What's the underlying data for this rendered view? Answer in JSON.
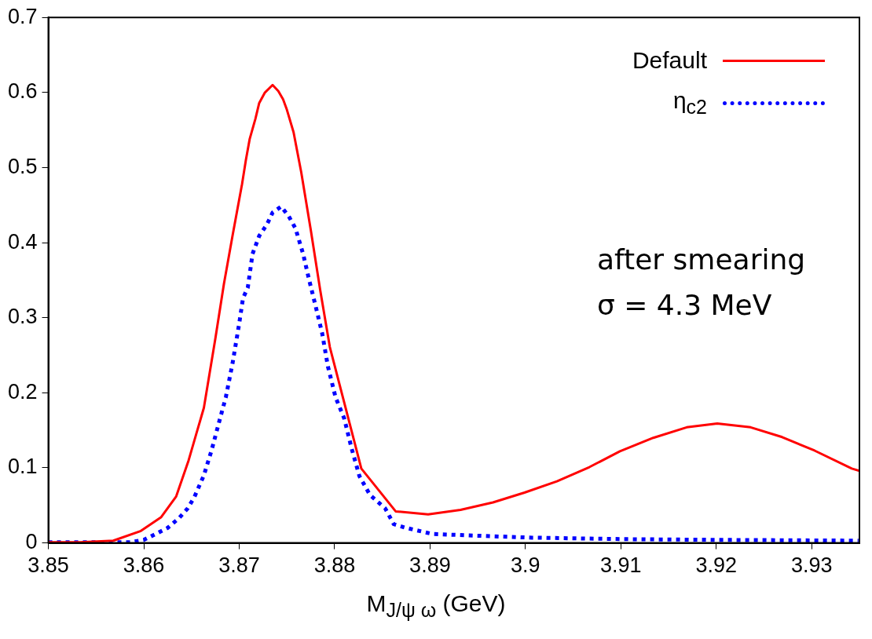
{
  "chart_data": {
    "type": "line",
    "xlabel": "M$_{J/ψ ω}$ (GeV)",
    "xlim": [
      3.85,
      3.935
    ],
    "xticks": [
      3.85,
      3.86,
      3.87,
      3.88,
      3.89,
      3.9,
      3.91,
      3.92,
      3.93
    ],
    "ylim": [
      0,
      0.7
    ],
    "yticks": [
      0,
      0.1,
      0.2,
      0.3,
      0.4,
      0.5,
      0.6,
      0.7
    ],
    "grid": false,
    "legend": "top right",
    "marker": "none",
    "annotations": [
      "after smearing",
      "σ = 4.3 MeV"
    ],
    "series": [
      {
        "name": "Default",
        "color": "#ff0000",
        "line_style": "solid",
        "x": [
          3.85,
          3.8534,
          3.8568,
          3.8597,
          3.8618,
          3.8634,
          3.8647,
          3.8655,
          3.8663,
          3.8675,
          3.8684,
          3.8693,
          3.8703,
          3.8707,
          3.8711,
          3.8717,
          3.8721,
          3.8727,
          3.8735,
          3.8741,
          3.8746,
          3.875,
          3.8757,
          3.8765,
          3.8775,
          3.8785,
          3.8795,
          3.8828,
          3.8864,
          3.8898,
          3.8932,
          3.8966,
          3.8999,
          3.9033,
          3.9067,
          3.9099,
          3.9134,
          3.9169,
          3.9201,
          3.9236,
          3.9269,
          3.9303,
          3.9342,
          3.935
        ],
        "values": [
          0.001,
          0.001,
          0.003,
          0.016,
          0.034,
          0.062,
          0.11,
          0.145,
          0.18,
          0.272,
          0.345,
          0.409,
          0.478,
          0.51,
          0.538,
          0.565,
          0.586,
          0.6,
          0.61,
          0.602,
          0.591,
          0.577,
          0.547,
          0.494,
          0.417,
          0.336,
          0.261,
          0.099,
          0.042,
          0.038,
          0.044,
          0.054,
          0.067,
          0.082,
          0.101,
          0.122,
          0.14,
          0.154,
          0.159,
          0.154,
          0.141,
          0.123,
          0.099,
          0.096
        ]
      },
      {
        "name": "η$_{c2}$",
        "color": "#0000ff",
        "line_style": "dotted",
        "x": [
          3.85,
          3.8586,
          3.86,
          3.8625,
          3.8637,
          3.8646,
          3.8653,
          3.8663,
          3.8671,
          3.868,
          3.8686,
          3.8693,
          3.87,
          3.8704,
          3.8709,
          3.8714,
          3.8721,
          3.8729,
          3.8735,
          3.8744,
          3.8752,
          3.8759,
          3.8767,
          3.8773,
          3.878,
          3.8787,
          3.8793,
          3.8801,
          3.881,
          3.8818,
          3.8826,
          3.8837,
          3.8853,
          3.8862,
          3.8875,
          3.8902,
          3.8941,
          3.9007,
          3.9106,
          3.9205,
          3.9349
        ],
        "values": [
          0.001,
          0.001,
          0.004,
          0.02,
          0.033,
          0.046,
          0.061,
          0.09,
          0.123,
          0.166,
          0.194,
          0.239,
          0.292,
          0.326,
          0.34,
          0.385,
          0.409,
          0.424,
          0.44,
          0.448,
          0.435,
          0.419,
          0.385,
          0.352,
          0.316,
          0.279,
          0.235,
          0.194,
          0.166,
          0.125,
          0.089,
          0.064,
          0.046,
          0.025,
          0.02,
          0.012,
          0.01,
          0.007,
          0.005,
          0.004,
          0.003
        ]
      }
    ]
  }
}
